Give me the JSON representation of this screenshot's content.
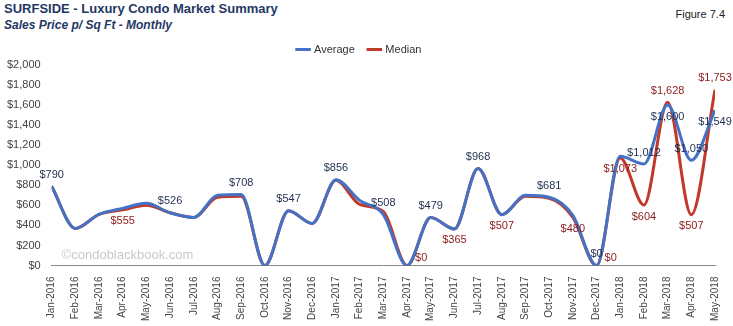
{
  "chart_data": {
    "type": "line",
    "title": "SURFSIDE - Luxury Condo Market Summary",
    "subtitle": "Sales Price  p/ Sq Ft - Monthly",
    "figure": "Figure 7.4",
    "watermark": "©condoblackbook.com",
    "categories": [
      "Jan-2016",
      "Feb-2016",
      "Mar-2016",
      "Apr-2016",
      "May-2016",
      "Jun-2016",
      "Jul-2016",
      "Aug-2016",
      "Sep-2016",
      "Oct-2016",
      "Nov-2016",
      "Dec-2016",
      "Jan-2017",
      "Feb-2017",
      "Mar-2017",
      "Apr-2017",
      "May-2017",
      "Jun-2017",
      "Jul-2017",
      "Aug-2017",
      "Sep-2017",
      "Oct-2017",
      "Nov-2017",
      "Dec-2017",
      "Jan-2018",
      "Feb-2018",
      "Mar-2018",
      "Apr-2018",
      "May-2018"
    ],
    "series": [
      {
        "name": "Average",
        "color": "#4472c4",
        "marker": "none",
        "line_style": "solid",
        "values": [
          790,
          370,
          510,
          570,
          620,
          526,
          480,
          700,
          708,
          0,
          547,
          420,
          856,
          650,
          508,
          0,
          479,
          365,
          968,
          507,
          700,
          681,
          500,
          0,
          1090,
          1012,
          1600,
          1050,
          1549
        ],
        "value_labels": [
          "$790",
          null,
          null,
          null,
          null,
          "$526",
          null,
          null,
          "$708",
          null,
          "$547",
          null,
          "$856",
          null,
          "$508",
          null,
          "$479",
          null,
          "$968",
          null,
          null,
          "$681",
          null,
          "$0",
          null,
          "$1,012",
          "$1,600",
          "$1,050",
          "$1,549"
        ]
      },
      {
        "name": "Median",
        "color": "#c0392b",
        "marker": "none",
        "line_style": "solid",
        "values": [
          790,
          370,
          510,
          555,
          600,
          526,
          480,
          680,
          690,
          0,
          547,
          420,
          850,
          610,
          540,
          0,
          479,
          365,
          968,
          507,
          690,
          670,
          480,
          0,
          1073,
          604,
          1628,
          507,
          1753
        ],
        "value_labels": [
          null,
          null,
          null,
          "$555",
          null,
          null,
          null,
          null,
          null,
          null,
          null,
          null,
          null,
          null,
          null,
          "$0",
          null,
          "$365",
          null,
          "$507",
          null,
          null,
          "$480",
          "$0",
          "$1,073",
          "$604",
          "$1,628",
          "$507",
          "$1,753"
        ]
      }
    ],
    "ylim": [
      0,
      2000
    ],
    "yticks": [
      {
        "value": 0,
        "label": "$0"
      },
      {
        "value": 200,
        "label": "$200"
      },
      {
        "value": 400,
        "label": "$400"
      },
      {
        "value": 600,
        "label": "$600"
      },
      {
        "value": 800,
        "label": "$800"
      },
      {
        "value": 1000,
        "label": "$1,000"
      },
      {
        "value": 1200,
        "label": "$1,200"
      },
      {
        "value": 1400,
        "label": "$1,400"
      },
      {
        "value": 1600,
        "label": "$1,600"
      },
      {
        "value": 1800,
        "label": "$1,800"
      },
      {
        "value": 2000,
        "label": "$2,000"
      }
    ],
    "grid": false,
    "legend": "top",
    "data_labels": true
  }
}
